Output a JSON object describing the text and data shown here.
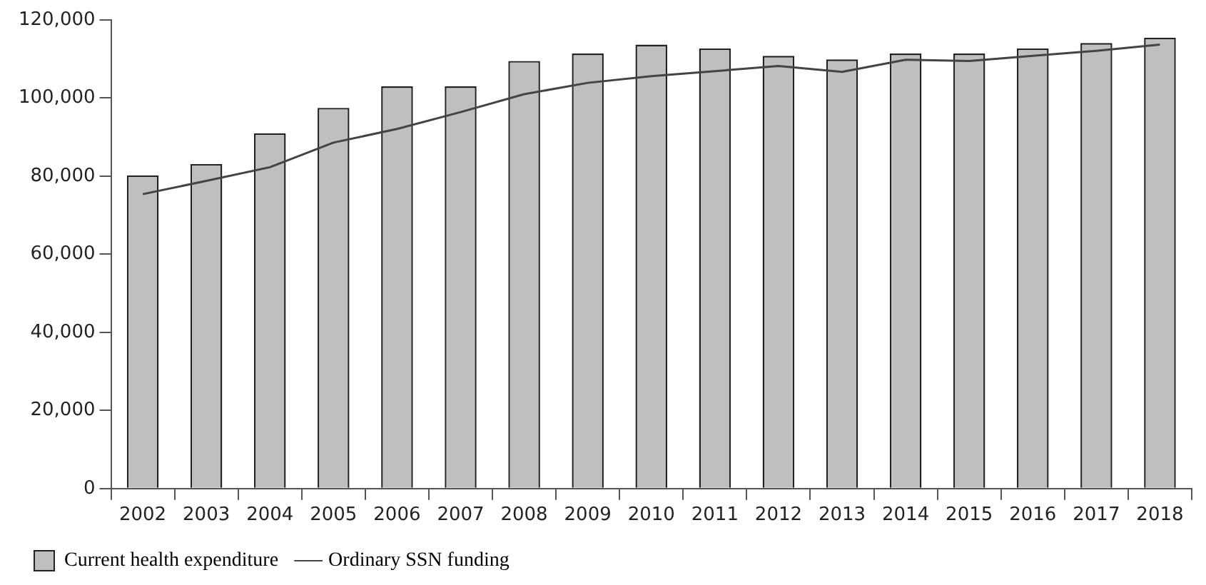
{
  "chart_data": {
    "type": "bar",
    "categories": [
      "2002",
      "2003",
      "2004",
      "2005",
      "2006",
      "2007",
      "2008",
      "2009",
      "2010",
      "2011",
      "2012",
      "2013",
      "2014",
      "2015",
      "2016",
      "2017",
      "2018"
    ],
    "series": [
      {
        "name": "Current health expenditure",
        "color": "#bebfc1",
        "values": [
          80200,
          83100,
          91000,
          97500,
          103000,
          103000,
          109500,
          111400,
          113700,
          112700,
          110800,
          109900,
          111400,
          111400,
          112700,
          114100,
          115500
        ]
      },
      {
        "name": "Ordinary SSN funding",
        "type": "line",
        "color": "#444444",
        "values": [
          75400,
          78800,
          82300,
          88600,
          92100,
          96400,
          101000,
          103900,
          105600,
          106900,
          108200,
          106700,
          109800,
          109500,
          110800,
          112100,
          113700
        ]
      }
    ],
    "ylim": [
      0,
      120000
    ],
    "yticks": [
      0,
      {
        "value": 20000,
        "label": "20,000"
      },
      {
        "value": 40000,
        "label": "40,000"
      },
      {
        "value": 60000,
        "label": "60,000"
      },
      {
        "value": 80000,
        "label": "80,000"
      },
      {
        "value": 100000,
        "label": "100,000"
      },
      {
        "value": 120000,
        "label": "120,000"
      }
    ],
    "grid": false,
    "legend": "bottom",
    "marker": "none",
    "line_style": "solid"
  }
}
